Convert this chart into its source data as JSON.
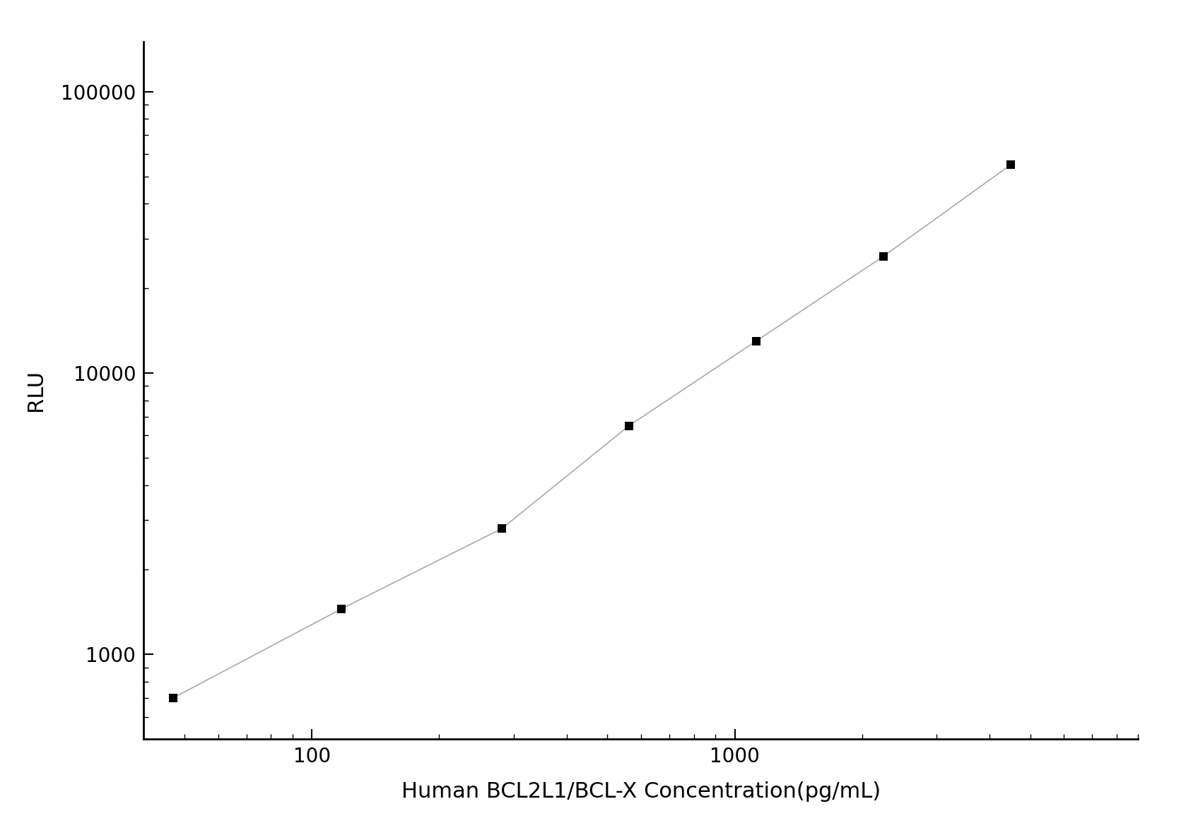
{
  "x_values": [
    46.875,
    117.1875,
    281.25,
    562.5,
    1125.0,
    2250.0,
    4500.0
  ],
  "y_values": [
    700,
    1450,
    2800,
    6500,
    13000,
    26000,
    55000
  ],
  "xlabel": "Human BCL2L1/BCL-X Concentration(pg/mL)",
  "ylabel": "RLU",
  "xlim_low": 40,
  "xlim_high": 9000,
  "ylim_low": 500,
  "ylim_high": 150000,
  "line_color": "#aaaaaa",
  "marker_color": "#000000",
  "marker_size": 9,
  "xlabel_fontsize": 22,
  "ylabel_fontsize": 22,
  "tick_fontsize": 20,
  "background_color": "#ffffff",
  "axes_color": "#000000",
  "figure_width": 16.95,
  "figure_height": 11.89,
  "figure_dpi": 100
}
